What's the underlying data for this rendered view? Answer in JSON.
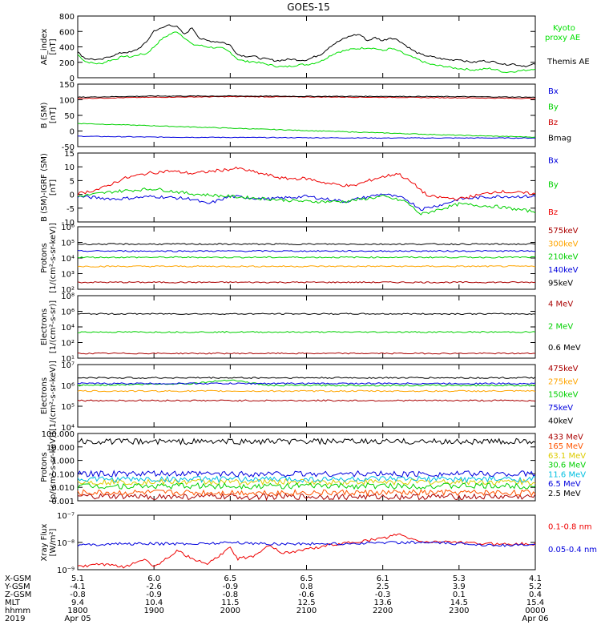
{
  "title": "GOES-15",
  "chart_data": [
    {
      "type": "line",
      "id": "ae",
      "ylabel": [
        "AE_index",
        "[nT]"
      ],
      "yticks": [
        "800",
        "600",
        "400",
        "200",
        "0"
      ],
      "ylim": [
        0,
        800
      ],
      "series": [
        {
          "name": "Kyoto proxy AE",
          "color": "#00e000",
          "x": [
            0,
            0.1,
            0.2,
            0.3,
            0.4,
            0.5,
            0.6,
            0.7,
            0.8,
            0.9,
            1.0,
            1.1,
            1.2,
            1.3,
            1.4,
            1.5,
            1.6,
            1.7,
            1.8,
            1.9,
            2.0,
            2.1,
            2.2,
            2.3,
            2.4,
            2.5,
            2.6,
            2.7,
            2.8,
            2.9,
            3.0,
            3.1,
            3.2,
            3.3,
            3.4,
            3.5,
            3.6,
            3.7,
            3.8,
            3.9,
            4.0,
            4.1,
            4.2,
            4.3,
            4.4,
            4.5,
            4.6,
            4.7,
            4.8,
            4.9,
            5.0,
            5.1,
            5.2,
            5.3,
            5.4,
            5.5,
            5.6,
            5.7,
            5.8,
            5.9,
            6.0
          ],
          "y": [
            300,
            210,
            190,
            180,
            220,
            240,
            280,
            270,
            300,
            310,
            400,
            500,
            560,
            600,
            520,
            430,
            420,
            400,
            390,
            380,
            330,
            240,
            210,
            210,
            190,
            170,
            150,
            140,
            150,
            170,
            170,
            190,
            220,
            280,
            330,
            350,
            370,
            380,
            390,
            380,
            350,
            380,
            350,
            300,
            260,
            220,
            180,
            160,
            150,
            130,
            120,
            110,
            100,
            110,
            120,
            100,
            70,
            80,
            90,
            100,
            120
          ]
        },
        {
          "name": "Themis AE",
          "color": "#000000",
          "x": [
            0,
            0.1,
            0.2,
            0.3,
            0.4,
            0.5,
            0.6,
            0.7,
            0.8,
            0.9,
            1.0,
            1.1,
            1.2,
            1.3,
            1.4,
            1.5,
            1.6,
            1.7,
            1.8,
            1.9,
            2.0,
            2.1,
            2.2,
            2.3,
            2.4,
            2.5,
            2.6,
            2.7,
            2.8,
            2.9,
            3.0,
            3.1,
            3.2,
            3.3,
            3.4,
            3.5,
            3.6,
            3.7,
            3.8,
            3.9,
            4.0,
            4.1,
            4.2,
            4.3,
            4.4,
            4.5,
            4.6,
            4.7,
            4.8,
            4.9,
            5.0,
            5.1,
            5.2,
            5.3,
            5.4,
            5.5,
            5.6,
            5.7,
            5.8,
            5.9,
            6.0
          ],
          "y": [
            330,
            250,
            240,
            230,
            270,
            300,
            330,
            330,
            380,
            460,
            610,
            640,
            690,
            660,
            560,
            650,
            510,
            480,
            470,
            460,
            420,
            300,
            280,
            280,
            250,
            240,
            220,
            230,
            240,
            230,
            230,
            270,
            310,
            400,
            460,
            510,
            550,
            560,
            480,
            520,
            480,
            520,
            490,
            420,
            350,
            300,
            280,
            260,
            240,
            230,
            240,
            210,
            200,
            220,
            210,
            200,
            170,
            180,
            160,
            150,
            180
          ]
        }
      ]
    },
    {
      "type": "line",
      "id": "b",
      "ylabel": [
        "B (SM)",
        "[nT]"
      ],
      "yticks": [
        "150",
        "100",
        "50",
        "0",
        "-50"
      ],
      "ylim": [
        -60,
        150
      ],
      "series": [
        {
          "name": "Bx",
          "color": "#0000dd",
          "x": [
            0,
            1,
            2,
            3,
            4,
            5,
            6
          ],
          "y": [
            -25,
            -28,
            -29,
            -30,
            -31,
            -31,
            -31
          ]
        },
        {
          "name": "By",
          "color": "#00d000",
          "x": [
            0,
            1,
            2,
            3,
            4,
            5,
            6
          ],
          "y": [
            18,
            10,
            2,
            -6,
            -14,
            -22,
            -28
          ]
        },
        {
          "name": "Bz",
          "color": "#cc0000",
          "x": [
            0,
            1,
            2,
            3,
            4,
            5,
            6
          ],
          "y": [
            102,
            106,
            108,
            107,
            106,
            104,
            102
          ]
        },
        {
          "name": "Bmag",
          "color": "#000000",
          "x": [
            0,
            1,
            2,
            3,
            4,
            5,
            6
          ],
          "y": [
            106,
            110,
            110,
            109,
            109,
            108,
            106
          ]
        }
      ]
    },
    {
      "type": "line",
      "id": "bdiff",
      "ylabel": [
        "B (SM)-IGRF (SM)",
        "[nT]"
      ],
      "yticks": [
        "15",
        "10",
        "5",
        "0",
        "-5",
        "-10"
      ],
      "ylim": [
        -11,
        16
      ],
      "series": [
        {
          "name": "Bx",
          "color": "#0000dd",
          "x": [
            0,
            0.5,
            1.0,
            1.5,
            1.7,
            2.0,
            2.5,
            3.0,
            3.5,
            4.0,
            4.3,
            4.5,
            4.8,
            5.0,
            5.5,
            6.0
          ],
          "y": [
            -1,
            -2,
            -1,
            -2,
            -4,
            -1,
            -2,
            -1,
            -3,
            0,
            -2,
            -6,
            -4,
            -2,
            -1,
            -1
          ]
        },
        {
          "name": "By",
          "color": "#00d000",
          "x": [
            0,
            0.5,
            1.0,
            1.5,
            2.0,
            2.5,
            3.0,
            3.5,
            4.0,
            4.3,
            4.5,
            5.0,
            5.5,
            6.0
          ],
          "y": [
            -1,
            1,
            2,
            0,
            -1,
            -2,
            -3,
            -3,
            -1,
            -3,
            -8,
            -4,
            -5,
            -7
          ]
        },
        {
          "name": "Bz",
          "color": "#ee0000",
          "x": [
            0,
            0.3,
            0.6,
            0.9,
            1.2,
            1.5,
            1.8,
            2.1,
            2.4,
            2.7,
            3.0,
            3.3,
            3.6,
            3.9,
            4.2,
            4.4,
            4.6,
            5.0,
            5.5,
            6.0
          ],
          "y": [
            0,
            2,
            6,
            8,
            9,
            8,
            9,
            10,
            8,
            6,
            6,
            4,
            3,
            6,
            8,
            4,
            -1,
            -2,
            1,
            0
          ]
        }
      ]
    },
    {
      "type": "line",
      "id": "protons_low",
      "ylabel": [
        "Protons",
        "[1/(cm²-s-sr-keV)]"
      ],
      "yticks": [
        "10⁶",
        "10⁵",
        "10⁴",
        "10³",
        "10²"
      ],
      "log": true,
      "ylim_exp": [
        1.7,
        6.2
      ],
      "series": [
        {
          "name": "575keV",
          "color": "#aa0000",
          "x": [
            0,
            6
          ],
          "y_exp": [
            2.2,
            2.2
          ]
        },
        {
          "name": "300keV",
          "color": "#ffa500",
          "x": [
            0,
            6
          ],
          "y_exp": [
            3.35,
            3.35
          ]
        },
        {
          "name": "210keV",
          "color": "#00d000",
          "x": [
            0,
            6
          ],
          "y_exp": [
            4.0,
            4.0
          ]
        },
        {
          "name": "140keV",
          "color": "#0000dd",
          "x": [
            0,
            6
          ],
          "y_exp": [
            4.45,
            4.45
          ]
        },
        {
          "name": "95keV",
          "color": "#000000",
          "x": [
            0,
            6
          ],
          "y_exp": [
            4.95,
            4.95
          ]
        }
      ]
    },
    {
      "type": "line",
      "id": "electrons_mev",
      "ylabel": [
        "Electrons",
        "[1/(cm²-s-sr)]"
      ],
      "yticks": [
        "10⁸",
        "10⁶",
        "10⁴",
        "10²",
        "10¹"
      ],
      "log": true,
      "ylim_exp": [
        0.4,
        8.3
      ],
      "series": [
        {
          "name": "4 MeV",
          "color": "#aa0000",
          "x": [
            0,
            6
          ],
          "y_exp": [
            1.0,
            1.0
          ]
        },
        {
          "name": "2 MeV",
          "color": "#00d000",
          "x": [
            0,
            6
          ],
          "y_exp": [
            3.7,
            3.7
          ]
        },
        {
          "name": "0.6 MeV",
          "color": "#000000",
          "x": [
            0,
            6
          ],
          "y_exp": [
            6.0,
            6.0
          ]
        }
      ]
    },
    {
      "type": "line",
      "id": "electrons_kev",
      "ylabel": [
        "Electrons",
        "[1/(cm²-s-sr-keV)]"
      ],
      "yticks": [
        "10⁷",
        "10⁶",
        "10⁵",
        "10⁴"
      ],
      "log": true,
      "ylim_exp": [
        3.7,
        7.0
      ],
      "series": [
        {
          "name": "475keV",
          "color": "#aa0000",
          "x": [
            0,
            6
          ],
          "y_exp": [
            5.1,
            5.1
          ]
        },
        {
          "name": "275keV",
          "color": "#ffa500",
          "x": [
            0,
            6
          ],
          "y_exp": [
            5.6,
            5.6
          ]
        },
        {
          "name": "150keV",
          "color": "#00d000",
          "x": [
            0,
            1.5,
            2.0,
            2.5,
            6
          ],
          "y_exp": [
            5.9,
            6.0,
            6.2,
            5.9,
            5.9
          ]
        },
        {
          "name": "75keV",
          "color": "#0000dd",
          "x": [
            0,
            6
          ],
          "y_exp": [
            6.0,
            6.0
          ]
        },
        {
          "name": "40keV",
          "color": "#000000",
          "x": [
            0,
            6
          ],
          "y_exp": [
            6.3,
            6.3
          ]
        }
      ]
    },
    {
      "type": "line",
      "id": "protons_high",
      "ylabel": [
        "Protons",
        "[p/(cm²-s-sr-keV)]"
      ],
      "yticks": [
        "100.000",
        "10.000",
        "1.000",
        "0.100",
        "0.010",
        "0.001"
      ],
      "log": true,
      "ylim_exp": [
        -3.0,
        2.0
      ],
      "series": [
        {
          "name": "433 MeV",
          "color": "#aa0000",
          "x": [
            0,
            6
          ],
          "y_exp": [
            -2.7,
            -2.7
          ]
        },
        {
          "name": "165 MeV",
          "color": "#ff5500",
          "x": [
            0,
            6
          ],
          "y_exp": [
            -2.4,
            -2.4
          ]
        },
        {
          "name": "63.1 MeV",
          "color": "#ddcc00",
          "x": [
            0,
            6
          ],
          "y_exp": [
            -1.6,
            -1.6
          ]
        },
        {
          "name": "30.6 MeV",
          "color": "#00d000",
          "x": [
            0,
            6
          ],
          "y_exp": [
            -1.9,
            -1.9
          ]
        },
        {
          "name": "11.6 MeV",
          "color": "#00c0e0",
          "x": [
            0,
            6
          ],
          "y_exp": [
            -1.4,
            -1.4
          ]
        },
        {
          "name": "6.5 MeV",
          "color": "#0000dd",
          "x": [
            0,
            6
          ],
          "y_exp": [
            -1.0,
            -1.0
          ]
        },
        {
          "name": "2.5 MeV",
          "color": "#000000",
          "x": [
            0,
            6
          ],
          "y_exp": [
            1.4,
            1.4
          ]
        }
      ]
    },
    {
      "type": "line",
      "id": "xray",
      "ylabel": [
        "Xray Flux",
        "[W/m²]"
      ],
      "yticks": [
        "10⁻⁷",
        "10⁻⁸",
        "10⁻⁹"
      ],
      "log": true,
      "ylim_exp": [
        -9.0,
        -7.0
      ],
      "series": [
        {
          "name": "0.1-0.8 nm",
          "color": "#ee0000",
          "x": [
            0,
            0.3,
            0.6,
            0.9,
            1.0,
            1.1,
            1.3,
            1.5,
            1.7,
            1.9,
            2.0,
            2.1,
            2.3,
            2.5,
            2.7,
            2.9,
            3.1,
            3.3,
            3.6,
            4.0,
            4.2,
            4.4,
            4.6,
            4.8,
            5.0,
            5.3,
            5.6,
            6.0
          ],
          "y_exp": [
            -8.9,
            -8.8,
            -8.9,
            -8.6,
            -8.9,
            -8.7,
            -8.3,
            -8.6,
            -8.8,
            -8.4,
            -8.2,
            -8.6,
            -8.5,
            -8.1,
            -8.4,
            -8.3,
            -8.2,
            -8.1,
            -8.0,
            -7.85,
            -7.7,
            -7.9,
            -8.0,
            -7.95,
            -8.0,
            -8.05,
            -8.05,
            -8.05
          ]
        },
        {
          "name": "0.05-0.4 nm",
          "color": "#0000dd",
          "x": [
            0,
            0.5,
            1.0,
            1.5,
            2.0,
            2.5,
            3.0,
            3.5,
            4.0,
            4.5,
            5.0,
            5.5,
            6.0
          ],
          "y_exp": [
            -8.1,
            -8.05,
            -8.05,
            -8.05,
            -8.0,
            -8.05,
            -8.05,
            -8.05,
            -8.0,
            -8.0,
            -8.05,
            -8.1,
            -8.1
          ]
        }
      ]
    }
  ],
  "x_axis": {
    "row_labels": [
      "X-GSM",
      "Y-GSM",
      "Z-GSM",
      "MLT",
      "hhmm",
      "2019"
    ],
    "columns": [
      [
        "5.1",
        "-4.1",
        "-0.8",
        "9.4",
        "1800",
        "Apr 05"
      ],
      [
        "6.0",
        "-2.6",
        "-0.9",
        "10.4",
        "1900",
        ""
      ],
      [
        "6.5",
        "-0.9",
        "-0.8",
        "11.5",
        "2000",
        ""
      ],
      [
        "6.5",
        "0.8",
        "-0.6",
        "12.5",
        "2100",
        ""
      ],
      [
        "6.1",
        "2.5",
        "-0.3",
        "13.6",
        "2200",
        ""
      ],
      [
        "5.3",
        "3.9",
        "0.1",
        "14.5",
        "2300",
        ""
      ],
      [
        "4.1",
        "5.2",
        "0.4",
        "15.4",
        "0000",
        "Apr 06"
      ]
    ]
  },
  "legend_labels": {
    "ae": [
      "Kyoto",
      "proxy AE",
      "Themis AE"
    ]
  }
}
